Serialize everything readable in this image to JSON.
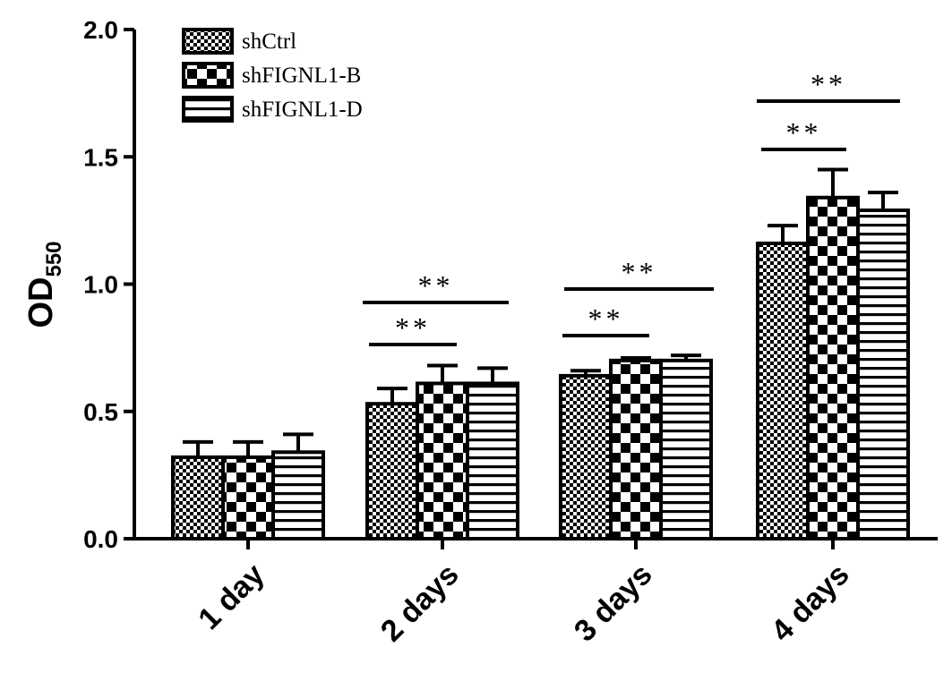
{
  "chart_data": {
    "type": "bar",
    "title": "",
    "xlabel": "",
    "ylabel": "OD",
    "ylabel_subscript": "550",
    "ylim": [
      0,
      2.0
    ],
    "yticks": [
      0.0,
      0.5,
      1.0,
      1.5,
      2.0
    ],
    "ytick_labels": [
      "0.0",
      "0.5",
      "1.0",
      "1.5",
      "2.0"
    ],
    "categories": [
      "1 day",
      "2 days",
      "3 days",
      "4 days"
    ],
    "grid": false,
    "legend_position": "top-left",
    "series": [
      {
        "name": "shCtrl",
        "pattern": "fine-check",
        "values": [
          0.32,
          0.53,
          0.64,
          1.16
        ],
        "errors": [
          0.06,
          0.06,
          0.02,
          0.07
        ]
      },
      {
        "name": "shFIGNL1-B",
        "pattern": "checkerboard",
        "values": [
          0.32,
          0.61,
          0.7,
          1.34
        ],
        "errors": [
          0.06,
          0.07,
          0.01,
          0.11
        ]
      },
      {
        "name": "shFIGNL1-D",
        "pattern": "horizontal-stripes",
        "values": [
          0.34,
          0.61,
          0.7,
          1.29
        ],
        "errors": [
          0.07,
          0.06,
          0.02,
          0.07
        ]
      }
    ],
    "significance": [
      {
        "category": "2 days",
        "from_series": 0,
        "to_series": 1,
        "label": "**"
      },
      {
        "category": "2 days",
        "from_series": 0,
        "to_series": 2,
        "label": "**"
      },
      {
        "category": "3 days",
        "from_series": 0,
        "to_series": 1,
        "label": "**"
      },
      {
        "category": "3 days",
        "from_series": 0,
        "to_series": 2,
        "label": "**"
      },
      {
        "category": "4 days",
        "from_series": 0,
        "to_series": 1,
        "label": "**"
      },
      {
        "category": "4 days",
        "from_series": 0,
        "to_series": 2,
        "label": "**"
      }
    ],
    "colors": {
      "ink": "#000000",
      "background": "#ffffff"
    }
  }
}
